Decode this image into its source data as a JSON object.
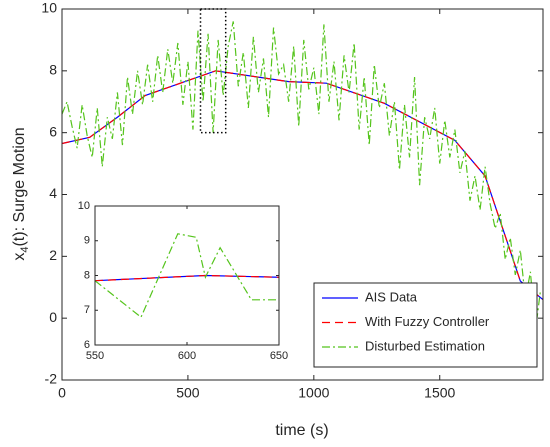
{
  "chart_data": [
    {
      "type": "line",
      "xlabel": "time (s)",
      "ylabel": {
        "base": "x",
        "sub": "4",
        "rest": "(t): Surge Motion"
      },
      "xlim": [
        0,
        1910
      ],
      "xticks": [
        0,
        500,
        1000,
        1500
      ],
      "ylim": [
        -2,
        10
      ],
      "yticks": [
        -2,
        0,
        2,
        4,
        6,
        8,
        10
      ],
      "legend": "lower right",
      "series": [
        {
          "name": "AIS Data",
          "color": "#0000ff",
          "style": "solid",
          "x": [
            0,
            110,
            220,
            330,
            610,
            900,
            1050,
            1280,
            1560,
            1680,
            1820,
            1910
          ],
          "values": [
            5.65,
            5.85,
            6.5,
            7.2,
            8.0,
            7.65,
            7.6,
            6.95,
            5.75,
            4.6,
            1.2,
            0.6
          ]
        },
        {
          "name": "With Fuzzy Controller",
          "color": "#ff0000",
          "style": "dashed",
          "x": [
            0,
            110,
            220,
            330,
            610,
            900,
            1050,
            1280,
            1560,
            1680,
            1820,
            1910
          ],
          "values": [
            5.65,
            5.85,
            6.5,
            7.2,
            8.0,
            7.65,
            7.6,
            6.95,
            5.75,
            4.6,
            1.2,
            0.6
          ]
        },
        {
          "name": "Disturbed Estimation",
          "color": "#55c41c",
          "style": "dashdot",
          "x": [
            0,
            20,
            40,
            60,
            80,
            100,
            120,
            140,
            160,
            180,
            200,
            220,
            240,
            260,
            280,
            300,
            320,
            340,
            360,
            380,
            400,
            420,
            440,
            460,
            480,
            500,
            520,
            540,
            560,
            580,
            600,
            620,
            640,
            660,
            680,
            700,
            720,
            740,
            760,
            780,
            800,
            820,
            840,
            860,
            880,
            900,
            920,
            940,
            960,
            980,
            1000,
            1020,
            1040,
            1060,
            1080,
            1100,
            1120,
            1140,
            1160,
            1180,
            1200,
            1220,
            1240,
            1260,
            1280,
            1300,
            1320,
            1340,
            1360,
            1380,
            1400,
            1420,
            1440,
            1460,
            1480,
            1500,
            1520,
            1540,
            1560,
            1580,
            1600,
            1620,
            1640,
            1660,
            1680,
            1700,
            1720,
            1740,
            1760,
            1780,
            1800,
            1820,
            1840,
            1860,
            1880,
            1900
          ],
          "values": [
            6.6,
            7.0,
            6.2,
            5.5,
            6.9,
            5.9,
            5.2,
            6.8,
            4.9,
            6.5,
            5.8,
            7.3,
            5.6,
            7.8,
            6.6,
            8.0,
            6.9,
            8.2,
            7.0,
            8.5,
            7.3,
            8.7,
            7.6,
            8.9,
            6.9,
            8.3,
            6.1,
            9.3,
            7.0,
            9.2,
            6.0,
            9.0,
            7.2,
            8.8,
            9.6,
            7.5,
            8.6,
            6.8,
            9.1,
            7.3,
            8.4,
            6.5,
            9.4,
            7.9,
            8.2,
            7.0,
            8.8,
            6.2,
            9.0,
            7.4,
            8.1,
            6.6,
            9.5,
            7.0,
            8.3,
            6.4,
            8.5,
            7.3,
            8.9,
            6.1,
            7.8,
            5.6,
            8.2,
            6.8,
            7.6,
            5.9,
            7.0,
            4.8,
            6.9,
            5.2,
            7.8,
            4.3,
            6.5,
            5.8,
            6.8,
            5.0,
            6.4,
            5.2,
            6.1,
            4.7,
            5.4,
            3.8,
            4.6,
            3.5,
            4.9,
            3.7,
            2.9,
            3.4,
            1.9,
            2.6,
            1.4,
            2.2,
            0.6,
            1.5,
            -0.4,
            0.9
          ]
        }
      ]
    },
    {
      "type": "line",
      "xlim": [
        550,
        650
      ],
      "xticks": [
        550,
        600,
        650
      ],
      "ylim": [
        6,
        10
      ],
      "yticks": [
        6,
        7,
        8,
        9,
        10
      ],
      "series": [
        {
          "color": "#0000ff",
          "style": "solid",
          "x": [
            550,
            610,
            650
          ],
          "values": [
            7.85,
            8.0,
            7.95
          ]
        },
        {
          "color": "#ff0000",
          "style": "dashed",
          "x": [
            550,
            610,
            650
          ],
          "values": [
            7.85,
            8.0,
            7.95
          ]
        },
        {
          "color": "#55c41c",
          "style": "dashdot",
          "x": [
            550,
            575,
            595,
            605,
            610,
            618,
            635,
            650
          ],
          "values": [
            7.85,
            6.8,
            9.2,
            9.1,
            7.95,
            8.8,
            7.3,
            7.3
          ]
        }
      ]
    }
  ]
}
